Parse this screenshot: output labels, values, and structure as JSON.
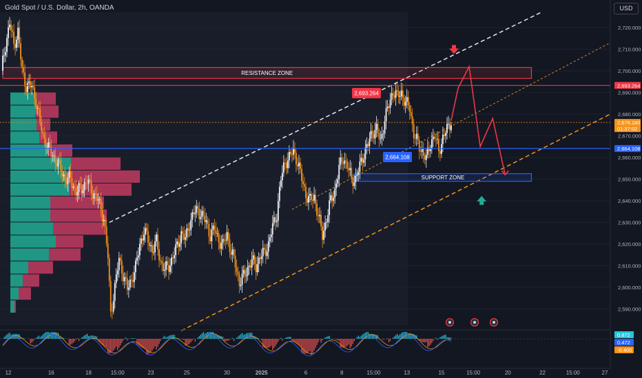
{
  "header": {
    "title": "Gold Spot / U.S. Dollar, 2h, OANDA",
    "currency": "USD"
  },
  "price_labels": {
    "resistance_price": "2,693.264",
    "current_price": "2,676.180",
    "countdown": "01:37:02",
    "support_price": "2,664.108"
  },
  "indicator_labels": [
    "0.872",
    "0.472",
    "-0.400"
  ],
  "colors": {
    "background": "#131722",
    "bull": "#f0f3fa",
    "bear": "#f7931a",
    "resistance": "#f23645",
    "support": "#2962ff",
    "volume_buy": "#22ab94",
    "volume_sell": "#c23b60"
  },
  "chart_data": {
    "type": "candlestick",
    "instrument": "Gold Spot / U.S. Dollar",
    "interval": "2h",
    "source": "OANDA",
    "y_axis": {
      "range": [
        2581,
        2727
      ],
      "ticks": [
        2590,
        2600,
        2610,
        2620,
        2630,
        2640,
        2650,
        2660,
        2670,
        2680,
        2690,
        2700,
        2710,
        2720
      ],
      "tick_labels": [
        "2,590.000",
        "2,600.000",
        "2,610.000",
        "2,620.000",
        "2,630.000",
        "2,640.000",
        "2,650.000",
        "2,660.000",
        "2,670.000",
        "2,680.000",
        "2,690.000",
        "2,700.000",
        "2,710.000",
        "2,720.000"
      ]
    },
    "x_axis": {
      "range": [
        0,
        440
      ],
      "ticks": [
        {
          "i": 5,
          "label": "12"
        },
        {
          "i": 36,
          "label": "16"
        },
        {
          "i": 63,
          "label": "18"
        },
        {
          "i": 84,
          "label": "15:00"
        },
        {
          "i": 108,
          "label": "23"
        },
        {
          "i": 134,
          "label": "25"
        },
        {
          "i": 163,
          "label": "30"
        },
        {
          "i": 188,
          "label": "2025"
        },
        {
          "i": 220,
          "label": "6"
        },
        {
          "i": 246,
          "label": "8"
        },
        {
          "i": 269,
          "label": "15:00"
        },
        {
          "i": 293,
          "label": "13"
        },
        {
          "i": 318,
          "label": "15"
        },
        {
          "i": 341,
          "label": "15:00"
        },
        {
          "i": 366,
          "label": "20"
        },
        {
          "i": 391,
          "label": "22"
        },
        {
          "i": 413,
          "label": "15:00"
        },
        {
          "i": 436,
          "label": "27"
        }
      ]
    },
    "price_path": [
      [
        0,
        2700
      ],
      [
        3,
        2712
      ],
      [
        6,
        2722
      ],
      [
        9,
        2712
      ],
      [
        12,
        2718
      ],
      [
        15,
        2700
      ],
      [
        18,
        2693
      ],
      [
        22,
        2693
      ],
      [
        25,
        2686
      ],
      [
        28,
        2676
      ],
      [
        30,
        2670
      ],
      [
        34,
        2664
      ],
      [
        38,
        2660
      ],
      [
        42,
        2656
      ],
      [
        46,
        2650
      ],
      [
        50,
        2650
      ],
      [
        54,
        2644
      ],
      [
        58,
        2646
      ],
      [
        62,
        2649
      ],
      [
        66,
        2644
      ],
      [
        70,
        2640
      ],
      [
        74,
        2632
      ],
      [
        77,
        2614
      ],
      [
        79,
        2588
      ],
      [
        82,
        2600
      ],
      [
        85,
        2613
      ],
      [
        88,
        2606
      ],
      [
        91,
        2599
      ],
      [
        94,
        2604
      ],
      [
        97,
        2609
      ],
      [
        100,
        2620
      ],
      [
        103,
        2626
      ],
      [
        106,
        2622
      ],
      [
        109,
        2617
      ],
      [
        112,
        2621
      ],
      [
        115,
        2612
      ],
      [
        118,
        2608
      ],
      [
        121,
        2610
      ],
      [
        124,
        2614
      ],
      [
        127,
        2619
      ],
      [
        130,
        2625
      ],
      [
        133,
        2622
      ],
      [
        136,
        2630
      ],
      [
        139,
        2634
      ],
      [
        142,
        2636
      ],
      [
        145,
        2633
      ],
      [
        148,
        2630
      ],
      [
        151,
        2624
      ],
      [
        154,
        2627
      ],
      [
        157,
        2622
      ],
      [
        160,
        2619
      ],
      [
        163,
        2625
      ],
      [
        166,
        2616
      ],
      [
        169,
        2611
      ],
      [
        172,
        2602
      ],
      [
        175,
        2605
      ],
      [
        178,
        2609
      ],
      [
        181,
        2612
      ],
      [
        184,
        2610
      ],
      [
        187,
        2614
      ],
      [
        190,
        2616
      ],
      [
        193,
        2620
      ],
      [
        196,
        2628
      ],
      [
        199,
        2634
      ],
      [
        202,
        2650
      ],
      [
        205,
        2658
      ],
      [
        208,
        2660
      ],
      [
        211,
        2663
      ],
      [
        214,
        2658
      ],
      [
        217,
        2650
      ],
      [
        220,
        2643
      ],
      [
        223,
        2640
      ],
      [
        226,
        2642
      ],
      [
        229,
        2633
      ],
      [
        232,
        2624
      ],
      [
        235,
        2632
      ],
      [
        238,
        2640
      ],
      [
        241,
        2645
      ],
      [
        244,
        2655
      ],
      [
        247,
        2660
      ],
      [
        250,
        2656
      ],
      [
        253,
        2650
      ],
      [
        256,
        2650
      ],
      [
        259,
        2656
      ],
      [
        262,
        2662
      ],
      [
        265,
        2666
      ],
      [
        268,
        2672
      ],
      [
        271,
        2673
      ],
      [
        274,
        2667
      ],
      [
        277,
        2678
      ],
      [
        280,
        2684
      ],
      [
        283,
        2691
      ],
      [
        286,
        2688
      ],
      [
        289,
        2690
      ],
      [
        292,
        2685
      ],
      [
        295,
        2683
      ],
      [
        298,
        2671
      ],
      [
        301,
        2666
      ],
      [
        304,
        2663
      ],
      [
        307,
        2659
      ],
      [
        310,
        2667
      ],
      [
        313,
        2670
      ],
      [
        316,
        2663
      ],
      [
        319,
        2669
      ],
      [
        322,
        2673
      ],
      [
        325,
        2677
      ]
    ],
    "forecast_path": [
      [
        325,
        2677
      ],
      [
        330,
        2692
      ],
      [
        338,
        2702
      ],
      [
        346,
        2665
      ],
      [
        355,
        2678
      ],
      [
        364,
        2652
      ]
    ],
    "zones": [
      {
        "label": "RESISTANCE ZONE",
        "y_low": 2696.5,
        "y_high": 2701.5,
        "x_start": 1,
        "x_end": 383
      },
      {
        "label": "SUPPORT ZONE",
        "y_low": 2649,
        "y_high": 2652.5,
        "x_start": 255,
        "x_end": 383
      }
    ],
    "levels": [
      {
        "name": "resistance-level",
        "value": 2693.264
      },
      {
        "name": "current-price",
        "value": 2676.18
      },
      {
        "name": "support-level",
        "value": 2664.108
      }
    ],
    "channel": {
      "upper_white": [
        [
          78,
          2630
        ],
        [
          390,
          2727
        ]
      ],
      "lower_orange": [
        [
          130,
          2580
        ],
        [
          440,
          2680
        ]
      ],
      "middle_orange": [
        [
          210,
          2636
        ],
        [
          440,
          2713
        ]
      ]
    },
    "volume_profile_rows": [
      {
        "y": 2591,
        "buy": 3,
        "sell": 1
      },
      {
        "y": 2597,
        "buy": 6,
        "sell": 9
      },
      {
        "y": 2603,
        "buy": 9,
        "sell": 12
      },
      {
        "y": 2609,
        "buy": 13,
        "sell": 18
      },
      {
        "y": 2615,
        "buy": 28,
        "sell": 23
      },
      {
        "y": 2621,
        "buy": 33,
        "sell": 20
      },
      {
        "y": 2627,
        "buy": 31,
        "sell": 38
      },
      {
        "y": 2633,
        "buy": 29,
        "sell": 41
      },
      {
        "y": 2639,
        "buy": 29,
        "sell": 39
      },
      {
        "y": 2645,
        "buy": 43,
        "sell": 45
      },
      {
        "y": 2651,
        "buy": 41,
        "sell": 53
      },
      {
        "y": 2657,
        "buy": 44,
        "sell": 36
      },
      {
        "y": 2663,
        "buy": 27,
        "sell": 18
      },
      {
        "y": 2669,
        "buy": 21,
        "sell": 13
      },
      {
        "y": 2675,
        "buy": 19,
        "sell": 10
      },
      {
        "y": 2681,
        "buy": 18,
        "sell": 17
      },
      {
        "y": 2687,
        "buy": 19,
        "sell": 14
      }
    ]
  }
}
